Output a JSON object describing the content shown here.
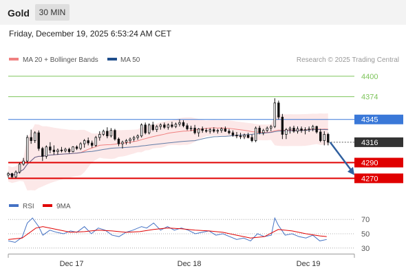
{
  "header": {
    "title": "Gold",
    "timeframe_label": "30 MIN",
    "datetime": "Friday, December 19, 2025 6:53:24 AM CET"
  },
  "colors": {
    "bollinger": "#f08080",
    "ma50": "#1f4e8c",
    "candle": "#111111",
    "rsi": "#4472c4",
    "rsi_ma": "#e00000",
    "resistance": "#7dc45a",
    "pivot": "#3a78d8",
    "support": "#e00000",
    "last_price_bg": "#333333",
    "arrow": "#2f5f9e"
  },
  "chart_data": [
    {
      "type": "candlestick",
      "legend": [
        {
          "name": "MA 20 + Bollinger Bands",
          "color": "#f08080"
        },
        {
          "name": "MA 50",
          "color": "#1f4e8c"
        }
      ],
      "credit": "Research © 2025 Trading Central",
      "ylim": [
        4255,
        4410
      ],
      "xlim": [
        0,
        100
      ],
      "x_ticks": [
        {
          "x": 18.3,
          "label": "Dec 17"
        },
        {
          "x": 52.3,
          "label": "Dec 18"
        },
        {
          "x": 86.7,
          "label": "Dec 19"
        }
      ],
      "levels": [
        {
          "value": 4400,
          "label": "4400",
          "kind": "resistance"
        },
        {
          "value": 4374,
          "label": "4374",
          "kind": "resistance"
        },
        {
          "value": 4345,
          "label": "4345",
          "kind": "pivot"
        },
        {
          "value": 4316,
          "label": "4316",
          "kind": "last"
        },
        {
          "value": 4290,
          "label": "4290",
          "kind": "support"
        },
        {
          "value": 4270,
          "label": "4270",
          "kind": "support"
        }
      ],
      "forecast_arrow": {
        "from": [
          93,
          4316
        ],
        "to": [
          100,
          4274
        ]
      },
      "candles": [
        [
          0,
          4274,
          4278,
          4271,
          4276
        ],
        [
          1.1,
          4276,
          4277,
          4270,
          4272
        ],
        [
          2.2,
          4272,
          4280,
          4270,
          4278
        ],
        [
          3.3,
          4278,
          4290,
          4276,
          4288
        ],
        [
          4.4,
          4288,
          4296,
          4286,
          4292
        ],
        [
          5.5,
          4292,
          4325,
          4290,
          4322
        ],
        [
          6.6,
          4322,
          4332,
          4314,
          4318
        ],
        [
          7.7,
          4318,
          4330,
          4315,
          4328
        ],
        [
          8.8,
          4328,
          4331,
          4305,
          4308
        ],
        [
          9.9,
          4308,
          4310,
          4292,
          4298
        ],
        [
          11,
          4298,
          4312,
          4295,
          4310
        ],
        [
          12.1,
          4310,
          4316,
          4302,
          4306
        ],
        [
          13.2,
          4306,
          4312,
          4300,
          4304
        ],
        [
          14.3,
          4304,
          4308,
          4300,
          4306
        ],
        [
          15.4,
          4306,
          4310,
          4303,
          4305
        ],
        [
          16.5,
          4305,
          4309,
          4303,
          4307
        ],
        [
          17.6,
          4307,
          4309,
          4302,
          4304
        ],
        [
          18.7,
          4304,
          4311,
          4303,
          4310
        ],
        [
          19.8,
          4310,
          4312,
          4306,
          4308
        ],
        [
          20.9,
          4308,
          4316,
          4306,
          4314
        ],
        [
          22,
          4314,
          4320,
          4309,
          4318
        ],
        [
          23.1,
          4318,
          4322,
          4312,
          4315
        ],
        [
          24.2,
          4315,
          4318,
          4309,
          4312
        ],
        [
          25.3,
          4312,
          4324,
          4310,
          4322
        ],
        [
          26.4,
          4322,
          4330,
          4318,
          4326
        ],
        [
          27.5,
          4326,
          4332,
          4324,
          4330
        ],
        [
          28.6,
          4330,
          4335,
          4321,
          4324
        ],
        [
          29.7,
          4324,
          4334,
          4322,
          4331
        ],
        [
          30.8,
          4331,
          4333,
          4318,
          4320
        ],
        [
          31.9,
          4320,
          4322,
          4311,
          4314
        ],
        [
          33,
          4314,
          4318,
          4308,
          4316
        ],
        [
          34.1,
          4316,
          4320,
          4313,
          4318
        ],
        [
          35.2,
          4318,
          4322,
          4314,
          4320
        ],
        [
          36.3,
          4320,
          4324,
          4317,
          4322
        ],
        [
          37.4,
          4322,
          4326,
          4319,
          4324
        ],
        [
          38.5,
          4324,
          4340,
          4322,
          4338
        ],
        [
          39.6,
          4338,
          4341,
          4326,
          4328
        ],
        [
          40.7,
          4328,
          4340,
          4326,
          4338
        ],
        [
          41.8,
          4338,
          4342,
          4330,
          4332
        ],
        [
          42.9,
          4332,
          4338,
          4329,
          4336
        ],
        [
          44,
          4336,
          4340,
          4332,
          4338
        ],
        [
          45.1,
          4338,
          4341,
          4333,
          4335
        ],
        [
          46.2,
          4335,
          4340,
          4332,
          4338
        ],
        [
          47.3,
          4338,
          4342,
          4334,
          4336
        ],
        [
          48.4,
          4336,
          4341,
          4334,
          4339
        ],
        [
          49.5,
          4339,
          4345,
          4336,
          4341
        ],
        [
          50.6,
          4341,
          4344,
          4335,
          4337
        ],
        [
          51.7,
          4337,
          4340,
          4331,
          4333
        ],
        [
          52.8,
          4333,
          4337,
          4330,
          4334
        ],
        [
          53.9,
          4334,
          4338,
          4326,
          4328
        ],
        [
          55,
          4328,
          4334,
          4323,
          4333
        ],
        [
          56.1,
          4333,
          4336,
          4328,
          4331
        ],
        [
          57.2,
          4331,
          4334,
          4328,
          4330
        ],
        [
          58.3,
          4330,
          4334,
          4327,
          4332
        ],
        [
          59.4,
          4332,
          4335,
          4328,
          4330
        ],
        [
          60.5,
          4330,
          4333,
          4327,
          4331
        ],
        [
          61.6,
          4331,
          4335,
          4328,
          4333
        ],
        [
          62.7,
          4333,
          4336,
          4329,
          4330
        ],
        [
          63.8,
          4330,
          4333,
          4326,
          4328
        ],
        [
          64.9,
          4328,
          4331,
          4323,
          4325
        ],
        [
          66,
          4325,
          4329,
          4321,
          4324
        ],
        [
          67.1,
          4324,
          4328,
          4320,
          4323
        ],
        [
          68.2,
          4323,
          4327,
          4320,
          4325
        ],
        [
          69.3,
          4325,
          4328,
          4321,
          4322
        ],
        [
          70.4,
          4322,
          4326,
          4316,
          4318
        ],
        [
          71.5,
          4318,
          4336,
          4316,
          4334
        ],
        [
          72.6,
          4334,
          4337,
          4326,
          4328
        ],
        [
          73.7,
          4328,
          4333,
          4325,
          4331
        ],
        [
          74.8,
          4331,
          4336,
          4329,
          4334
        ],
        [
          75.9,
          4334,
          4338,
          4330,
          4336
        ],
        [
          77,
          4336,
          4372,
          4334,
          4366
        ],
        [
          78.1,
          4366,
          4369,
          4345,
          4348
        ],
        [
          79.2,
          4348,
          4352,
          4320,
          4326
        ],
        [
          80.3,
          4326,
          4334,
          4320,
          4332
        ],
        [
          81.4,
          4332,
          4336,
          4327,
          4334
        ],
        [
          82.5,
          4334,
          4337,
          4328,
          4330
        ],
        [
          83.6,
          4330,
          4336,
          4327,
          4333
        ],
        [
          84.7,
          4333,
          4336,
          4328,
          4331
        ],
        [
          85.8,
          4331,
          4335,
          4326,
          4332
        ],
        [
          86.9,
          4332,
          4336,
          4329,
          4333
        ],
        [
          88,
          4333,
          4338,
          4330,
          4336
        ],
        [
          89.1,
          4336,
          4337,
          4327,
          4329
        ],
        [
          90.2,
          4329,
          4333,
          4316,
          4318
        ],
        [
          91.3,
          4318,
          4330,
          4312,
          4326
        ],
        [
          92.4,
          4326,
          4328,
          4312,
          4316
        ]
      ]
    },
    {
      "type": "line",
      "legend": [
        {
          "name": "RSI",
          "color": "#4472c4"
        },
        {
          "name": "9MA",
          "color": "#e00000"
        }
      ],
      "ylim": [
        25,
        75
      ],
      "y_ticks": [
        {
          "value": 70,
          "label": "70"
        },
        {
          "value": 50,
          "label": "50"
        },
        {
          "value": 30,
          "label": "30"
        }
      ],
      "series": [
        {
          "name": "RSI",
          "x": [
            0,
            2,
            4,
            5.5,
            7,
            8.8,
            10,
            12,
            14,
            16,
            18,
            19.8,
            22,
            24,
            26,
            28,
            30,
            32,
            34,
            36,
            38.5,
            40,
            42,
            44,
            46,
            48,
            50,
            52,
            54,
            56,
            58,
            60,
            62,
            64,
            66,
            68,
            70,
            72,
            74,
            76,
            77,
            78,
            80,
            82,
            84,
            86,
            88,
            90,
            92
          ],
          "values": [
            40,
            38,
            45,
            65,
            72,
            60,
            48,
            55,
            52,
            50,
            54,
            52,
            60,
            50,
            58,
            55,
            48,
            46,
            52,
            55,
            60,
            58,
            65,
            55,
            60,
            55,
            58,
            55,
            50,
            52,
            54,
            48,
            50,
            46,
            42,
            44,
            40,
            50,
            46,
            48,
            72,
            62,
            48,
            50,
            46,
            44,
            48,
            40,
            42
          ]
        },
        {
          "name": "9MA",
          "x": [
            0,
            4,
            8,
            10,
            14,
            18,
            22,
            26,
            30,
            34,
            38,
            42,
            46,
            50,
            54,
            58,
            62,
            66,
            70,
            74,
            78,
            82,
            86,
            90,
            92
          ],
          "values": [
            42,
            44,
            58,
            60,
            56,
            52,
            53,
            55,
            54,
            52,
            53,
            56,
            58,
            57,
            55,
            54,
            52,
            48,
            44,
            46,
            56,
            54,
            50,
            47,
            46
          ]
        }
      ]
    }
  ]
}
